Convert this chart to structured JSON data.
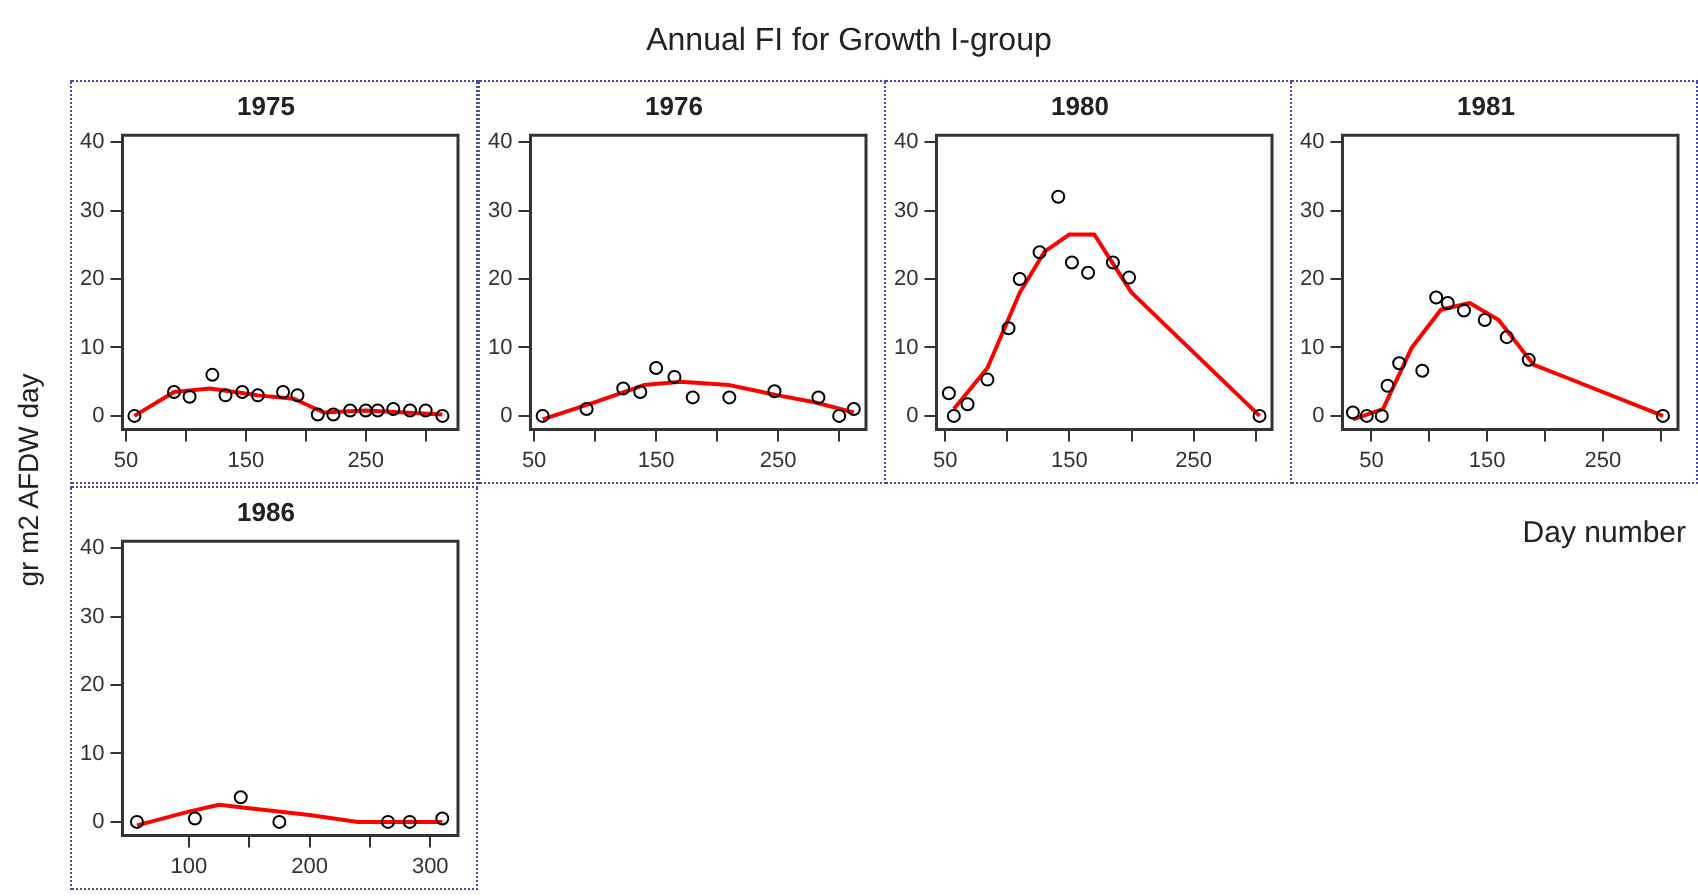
{
  "chart_data": [
    {
      "type": "scatter",
      "title": "1975",
      "ylabel": "gr m2 AFDW day",
      "annotations": [
        "Annual FI for Growth I-group"
      ],
      "xlim": [
        47,
        327
      ],
      "ylim": [
        -2,
        41
      ],
      "xticks": [
        50,
        {
          "value": 100,
          "label": null
        },
        150,
        {
          "value": 200,
          "label": null
        },
        250,
        {
          "value": 300,
          "label": null
        }
      ],
      "yticks": [
        0,
        10,
        20,
        30,
        40
      ],
      "series": [
        {
          "type": "scatter",
          "marker": "circle",
          "color": "#000000",
          "x": [
            57,
            90,
            103,
            122,
            133,
            147,
            160,
            181,
            193,
            210,
            223,
            237,
            250,
            260,
            273,
            287,
            300,
            314
          ],
          "values": [
            0,
            3.5,
            2.8,
            6,
            3,
            3.5,
            3,
            3.5,
            3,
            0.2,
            0.2,
            0.8,
            0.8,
            0.8,
            1,
            0.8,
            0.8,
            0
          ]
        },
        {
          "type": "line",
          "marker": "none",
          "color": "#ff0000",
          "x": [
            57,
            90,
            120,
            160,
            190,
            215,
            250,
            314
          ],
          "values": [
            0,
            3.5,
            4,
            3,
            2.5,
            0.5,
            0.8,
            0.2
          ]
        }
      ]
    },
    {
      "type": "scatter",
      "title": "1976",
      "xlim": [
        47,
        322
      ],
      "ylim": [
        -2,
        41
      ],
      "xticks": [
        50,
        {
          "value": 100,
          "label": null
        },
        150,
        {
          "value": 200,
          "label": null
        },
        250,
        {
          "value": 300,
          "label": null
        }
      ],
      "yticks": [
        0,
        10,
        20,
        30,
        40
      ],
      "series": [
        {
          "type": "scatter",
          "marker": "circle",
          "color": "#000000",
          "x": [
            57,
            93,
            123,
            137,
            150,
            165,
            180,
            210,
            247,
            283,
            300,
            312
          ],
          "values": [
            0,
            1,
            4,
            3.5,
            7,
            5.7,
            2.7,
            2.7,
            3.6,
            2.7,
            0,
            1
          ]
        },
        {
          "type": "line",
          "marker": "none",
          "color": "#ff0000",
          "x": [
            57,
            100,
            140,
            170,
            210,
            250,
            280,
            312
          ],
          "values": [
            -0.5,
            2,
            4.5,
            5,
            4.5,
            3,
            2,
            0.5
          ]
        }
      ]
    },
    {
      "type": "scatter",
      "title": "1980",
      "xlim": [
        43,
        313
      ],
      "ylim": [
        -2,
        41
      ],
      "xticks": [
        50,
        {
          "value": 100,
          "label": null
        },
        150,
        {
          "value": 200,
          "label": null
        },
        250,
        {
          "value": 300,
          "label": null
        }
      ],
      "yticks": [
        0,
        10,
        20,
        30,
        40
      ],
      "series": [
        {
          "type": "scatter",
          "marker": "circle",
          "color": "#000000",
          "x": [
            53,
            57,
            68,
            84,
            101,
            110,
            126,
            141,
            152,
            165,
            185,
            198,
            303
          ],
          "values": [
            3.3,
            0,
            1.7,
            5.3,
            12.8,
            20,
            23.9,
            32,
            22.4,
            20.9,
            22.4,
            20.2,
            0
          ]
        },
        {
          "type": "line",
          "marker": "none",
          "color": "#ff0000",
          "x": [
            57,
            84,
            110,
            130,
            150,
            170,
            200,
            303
          ],
          "values": [
            1,
            7,
            18,
            24,
            26.5,
            26.5,
            18,
            0
          ]
        }
      ]
    },
    {
      "type": "scatter",
      "title": "1981",
      "xlabel": "Day number",
      "xlim": [
        25,
        315
      ],
      "ylim": [
        -2,
        41
      ],
      "xticks": [
        50,
        {
          "value": 100,
          "label": null
        },
        150,
        {
          "value": 200,
          "label": null
        },
        250,
        {
          "value": 300,
          "label": null
        }
      ],
      "yticks": [
        0,
        10,
        20,
        30,
        40
      ],
      "series": [
        {
          "type": "scatter",
          "marker": "circle",
          "color": "#000000",
          "x": [
            34,
            46,
            59,
            64,
            74,
            94,
            106,
            116,
            130,
            148,
            167,
            186,
            302
          ],
          "values": [
            0.5,
            0,
            0,
            4.4,
            7.7,
            6.6,
            17.3,
            16.5,
            15.4,
            14,
            11.5,
            8.2,
            0
          ]
        },
        {
          "type": "line",
          "marker": "none",
          "color": "#ff0000",
          "x": [
            34,
            60,
            85,
            110,
            135,
            160,
            190,
            220,
            302
          ],
          "values": [
            -0.5,
            1,
            10,
            15.5,
            16.5,
            14,
            7.5,
            5.5,
            0
          ]
        }
      ]
    },
    {
      "type": "scatter",
      "title": "1986",
      "xlim": [
        45,
        323
      ],
      "ylim": [
        -2,
        41
      ],
      "xticks": [
        100,
        {
          "value": 150,
          "label": null
        },
        200,
        {
          "value": 250,
          "label": null
        },
        300
      ],
      "yticks": [
        0,
        10,
        20,
        30,
        40
      ],
      "series": [
        {
          "type": "scatter",
          "marker": "circle",
          "color": "#000000",
          "x": [
            57,
            105,
            143,
            175,
            265,
            283,
            310
          ],
          "values": [
            0,
            0.5,
            3.6,
            0,
            0,
            0,
            0.5
          ]
        },
        {
          "type": "line",
          "marker": "none",
          "color": "#ff0000",
          "x": [
            57,
            100,
            125,
            150,
            200,
            240,
            310
          ],
          "values": [
            -0.5,
            1.5,
            2.5,
            2,
            1,
            0,
            0
          ]
        }
      ]
    }
  ]
}
